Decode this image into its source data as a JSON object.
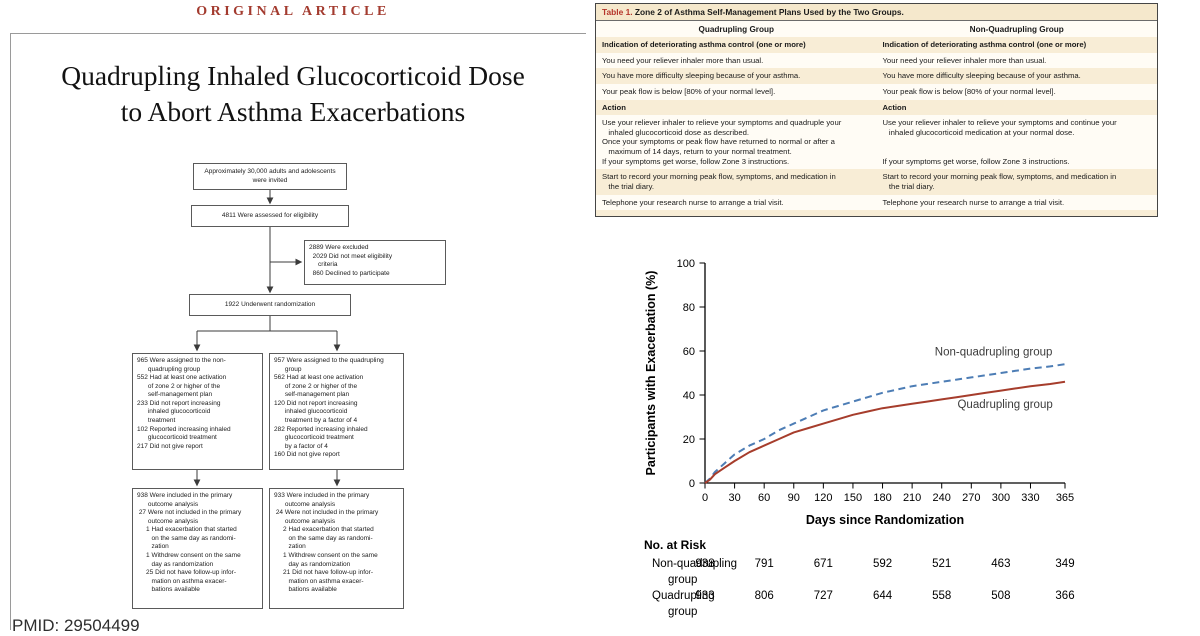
{
  "page": {
    "kicker": "ORIGINAL ARTICLE",
    "title_line1": "Quadrupling Inhaled Glucocorticoid Dose",
    "title_line2": "to Abort Asthma Exacerbations",
    "pmid": "PMID: 29504499"
  },
  "colors": {
    "accent_red": "#a33b2f",
    "table_shade": "#f8edd6",
    "curve_blue": "#4d7db5",
    "curve_red": "#a63d2c"
  },
  "flow": {
    "invited": "Approximately 30,000 adults and adolescents\nwere invited",
    "assessed": "4811 Were assessed for eligibility",
    "excluded": "2889 Were excluded\n  2029 Did not meet eligibility\n     criteria\n  860 Declined to participate",
    "randomized": "1922 Underwent randomization",
    "arm_nonquad": "965 Were assigned to the non-\n      quadrupling group\n552 Had at least one activation\n      of zone 2 or higher of the\n      self-management plan\n233 Did not report increasing\n      inhaled glucocorticoid\n      treatment\n102 Reported increasing inhaled\n      glucocorticoid treatment\n217 Did not give report",
    "arm_quad": "957 Were assigned to the quadrupling\n      group\n562 Had at least one activation\n      of zone 2 or higher of the\n      self-management plan\n120 Did not report increasing\n      inhaled glucocorticoid\n      treatment by a factor of 4\n282 Reported increasing inhaled\n      glucocorticoid treatment\n      by a factor of 4\n160 Did not give report",
    "outcome_nonquad": "938 Were included in the primary\n      outcome analysis\n 27 Were not included in the primary\n      outcome analysis\n     1 Had exacerbation that started\n        on the same day as randomi-\n        zation\n     1 Withdrew consent on the same\n        day as randomization\n     25 Did not have follow-up infor-\n        mation on asthma exacer-\n        bations available",
    "outcome_quad": "933 Were included in the primary\n      outcome analysis\n 24 Were not included in the primary\n      outcome analysis\n     2 Had exacerbation that started\n        on the same day as randomi-\n        zation\n     1 Withdrew consent on the same\n        day as randomization\n     21 Did not have follow-up infor-\n        mation on asthma exacer-\n        bations available"
  },
  "table1": {
    "title_label": "Table 1.",
    "title_text": " Zone 2 of Asthma Self-Management Plans Used by the Two Groups.",
    "col1_header": "Quadrupling Group",
    "col2_header": "Non-Quadrupling Group",
    "rows": [
      {
        "left": "Indication of deteriorating asthma control (one or more)",
        "right": "Indication of deteriorating asthma control (one or more)"
      },
      {
        "left": "You need your reliever inhaler more than usual.",
        "right": "Your need your reliever inhaler more than usual."
      },
      {
        "left": "You have more difficulty sleeping because of your asthma.",
        "right": "You have more difficulty sleeping because of your asthma."
      },
      {
        "left": "Your peak flow is below [80% of your normal level].",
        "right": "Your peak flow is below [80% of your normal level]."
      },
      {
        "left": "Action",
        "right": "Action"
      },
      {
        "left": "Use your reliever inhaler to relieve your symptoms and quadruple your\n   inhaled glucocorticoid dose as described.\nOnce your symptoms or peak flow have returned to normal or after a\n   maximum of 14 days, return to your normal treatment.\nIf your symptoms get worse, follow Zone 3 instructions.",
        "right": "Use your reliever inhaler to relieve your symptoms and continue your\n   inhaled glucocorticoid medication at your normal dose.\n\n\nIf your symptoms get worse, follow Zone 3 instructions."
      },
      {
        "left": "Start to record your morning peak flow, symptoms, and medication in\n   the trial diary.",
        "right": "Start to record your morning peak flow, symptoms, and medication in\n   the trial diary."
      },
      {
        "left": "Telephone your research nurse to arrange a trial visit.",
        "right": "Telephone your research nurse to arrange a trial visit."
      }
    ]
  },
  "chart_data": {
    "type": "line",
    "title": "",
    "xlabel": "Days since Randomization",
    "ylabel": "Participants with Exacerbation (%)",
    "xlim": [
      0,
      365
    ],
    "ylim": [
      0,
      100
    ],
    "xticks": [
      0,
      30,
      60,
      90,
      120,
      150,
      180,
      210,
      240,
      270,
      300,
      330,
      365
    ],
    "yticks": [
      0,
      20,
      40,
      60,
      80,
      100
    ],
    "grid": false,
    "legend_position": "inline-labels",
    "series": [
      {
        "name": "Non-quadrupling group",
        "color": "#4d7db5",
        "dash": true,
        "points": [
          [
            0,
            0
          ],
          [
            5,
            2
          ],
          [
            10,
            5
          ],
          [
            20,
            9
          ],
          [
            30,
            13
          ],
          [
            45,
            17
          ],
          [
            60,
            20
          ],
          [
            75,
            24
          ],
          [
            90,
            27
          ],
          [
            105,
            30
          ],
          [
            120,
            33
          ],
          [
            135,
            35
          ],
          [
            150,
            37
          ],
          [
            165,
            39
          ],
          [
            180,
            41
          ],
          [
            195,
            42.5
          ],
          [
            210,
            44
          ],
          [
            225,
            45
          ],
          [
            240,
            46
          ],
          [
            255,
            47
          ],
          [
            270,
            48
          ],
          [
            285,
            49
          ],
          [
            300,
            50
          ],
          [
            315,
            51
          ],
          [
            330,
            52
          ],
          [
            350,
            53
          ],
          [
            365,
            54
          ]
        ]
      },
      {
        "name": "Quadrupling group",
        "color": "#a63d2c",
        "dash": false,
        "points": [
          [
            0,
            0
          ],
          [
            5,
            1.5
          ],
          [
            10,
            4
          ],
          [
            20,
            7
          ],
          [
            30,
            10
          ],
          [
            45,
            14
          ],
          [
            60,
            17
          ],
          [
            75,
            20
          ],
          [
            90,
            23
          ],
          [
            105,
            25
          ],
          [
            120,
            27
          ],
          [
            135,
            29
          ],
          [
            150,
            31
          ],
          [
            165,
            32.5
          ],
          [
            180,
            34
          ],
          [
            195,
            35
          ],
          [
            210,
            36
          ],
          [
            225,
            37
          ],
          [
            240,
            38
          ],
          [
            255,
            39
          ],
          [
            270,
            40
          ],
          [
            285,
            41
          ],
          [
            300,
            42
          ],
          [
            315,
            43
          ],
          [
            330,
            44
          ],
          [
            350,
            45
          ],
          [
            365,
            46
          ]
        ]
      }
    ],
    "annotations": [
      {
        "text": "Non-quadrupling group",
        "x": 233,
        "y": 58
      },
      {
        "text": "Quadrupling group",
        "x": 256,
        "y": 34
      }
    ]
  },
  "risk_table": {
    "header": "No. at Risk",
    "days": [
      0,
      60,
      120,
      180,
      240,
      300,
      365
    ],
    "rows": [
      {
        "label_line1": "Non-quadrupling",
        "label_line2": "group",
        "values": [
          "938",
          "791",
          "671",
          "592",
          "521",
          "463",
          "349"
        ]
      },
      {
        "label_line1": "Quadrupling",
        "label_line2": "group",
        "values": [
          "933",
          "806",
          "727",
          "644",
          "558",
          "508",
          "366"
        ]
      }
    ]
  }
}
